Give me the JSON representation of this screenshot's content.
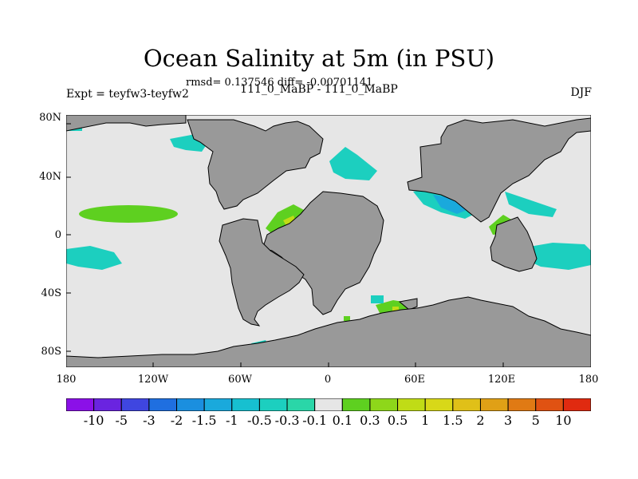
{
  "title": "Ocean Salinity at 5m (in PSU)",
  "stats_line": "rmsd= 0.137546 diff= -0.00701141",
  "left_label": "Expt = teyfw3-teyfw2",
  "center_label": "111_0_MaBP - 111_0_MaBP",
  "right_label": "DJF",
  "lat_ticks": [
    "80N",
    "40N",
    "0",
    "40S",
    "80S"
  ],
  "lon_ticks": [
    "180",
    "120W",
    "60W",
    "0",
    "60E",
    "120E",
    "180"
  ],
  "colorbar": {
    "labels": [
      "-10",
      "-5",
      "-3",
      "-2",
      "-1.5",
      "-1",
      "-0.5",
      "-0.3",
      "-0.1",
      "0.1",
      "0.3",
      "0.5",
      "1",
      "1.5",
      "2",
      "3",
      "5",
      "10"
    ],
    "colors": [
      "#8b10e8",
      "#6a24e0",
      "#3f46e0",
      "#1f6fe0",
      "#1b8fdf",
      "#1aa9dc",
      "#17c0d0",
      "#1ccfbf",
      "#2ad6a8",
      "#e6e6e6",
      "#5ed020",
      "#8ed71a",
      "#c0dc16",
      "#d8d818",
      "#e0c018",
      "#e0a016",
      "#e07a14",
      "#e05212",
      "#e02a10"
    ]
  },
  "map_colors": {
    "land": "#999999",
    "ocean_neutral": "#e6e6e6",
    "positive_anomaly": "#5ed020",
    "negative_anomaly": "#1ccfbf"
  }
}
